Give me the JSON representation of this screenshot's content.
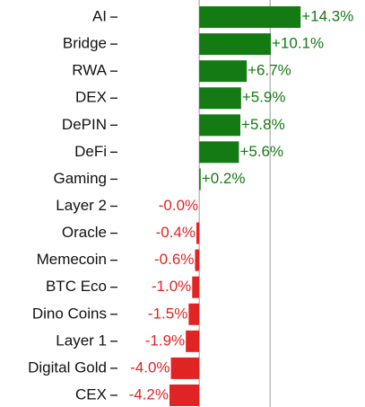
{
  "chart_data": {
    "type": "bar",
    "orientation": "horizontal",
    "categories": [
      "AI",
      "Bridge",
      "RWA",
      "DEX",
      "DePIN",
      "DeFi",
      "Gaming",
      "Layer 2",
      "Oracle",
      "Memecoin",
      "BTC Eco",
      "Dino Coins",
      "Layer 1",
      "Digital Gold",
      "CEX"
    ],
    "values": [
      14.3,
      10.1,
      6.7,
      5.9,
      5.8,
      5.6,
      0.2,
      -0.0,
      -0.4,
      -0.6,
      -1.0,
      -1.5,
      -1.9,
      -4.0,
      -4.2
    ],
    "value_labels": [
      "+14.3%",
      "+10.1%",
      "+6.7%",
      "+5.9%",
      "+5.8%",
      "+5.6%",
      "+0.2%",
      "-0.0%",
      "-0.4%",
      "-0.6%",
      "-1.0%",
      "-1.5%",
      "-1.9%",
      "-4.0%",
      "-4.2%"
    ],
    "positive_color": "#147a14",
    "negative_color": "#e02424",
    "xlim": [
      -10.4,
      22.5
    ],
    "xticks": [
      0,
      10
    ],
    "grid": true
  }
}
